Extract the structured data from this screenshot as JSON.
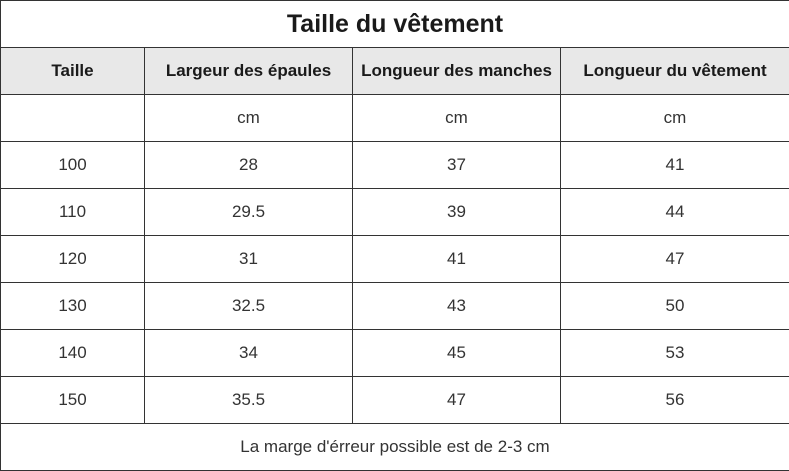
{
  "title": "Taille du vêtement",
  "headers": [
    "Taille",
    "Largeur des épaules",
    "Longueur des manches",
    "Longueur du vêtement"
  ],
  "units": [
    "",
    "cm",
    "cm",
    "cm"
  ],
  "rows": [
    [
      "100",
      "28",
      "37",
      "41"
    ],
    [
      "110",
      "29.5",
      "39",
      "44"
    ],
    [
      "120",
      "31",
      "41",
      "47"
    ],
    [
      "130",
      "32.5",
      "43",
      "50"
    ],
    [
      "140",
      "34",
      "45",
      "53"
    ],
    [
      "150",
      "35.5",
      "47",
      "56"
    ]
  ],
  "footer": "La marge d'érreur possible est de 2-3 cm",
  "colors": {
    "header_background": "#e8e8e8",
    "border": "#333333",
    "text": "#333333"
  }
}
